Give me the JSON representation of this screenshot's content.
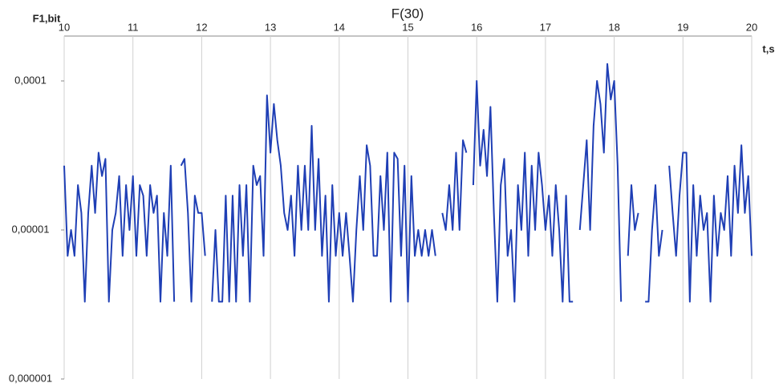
{
  "chart_data": {
    "type": "line",
    "title": "F(30)",
    "y_label": "F1,bit",
    "x_label": "t,s",
    "log_y": true,
    "x_axis_position": "top",
    "grid": "x",
    "xlim": [
      10,
      20
    ],
    "xticks": [
      10,
      11,
      12,
      13,
      14,
      15,
      16,
      17,
      18,
      19,
      20
    ],
    "ylim": [
      1e-06,
      0.0002
    ],
    "yticks": [
      {
        "value": 1e-06,
        "label": "0,000001"
      },
      {
        "value": 1e-05,
        "label": "0,00001"
      },
      {
        "value": 0.0001,
        "label": "0,0001"
      }
    ],
    "x": [
      10,
      10.05,
      10.1,
      10.15,
      10.2,
      10.25,
      10.3,
      10.35,
      10.4,
      10.45,
      10.5,
      10.55,
      10.6,
      10.65,
      10.7,
      10.75,
      10.8,
      10.85,
      10.9,
      10.95,
      11,
      11.05,
      11.1,
      11.15,
      11.2,
      11.25,
      11.3,
      11.35,
      11.4,
      11.45,
      11.5,
      11.55,
      11.6,
      11.65,
      11.7,
      11.75,
      11.8,
      11.85,
      11.9,
      11.95,
      12,
      12.05,
      12.1,
      12.15,
      12.2,
      12.25,
      12.3,
      12.35,
      12.4,
      12.45,
      12.5,
      12.55,
      12.6,
      12.65,
      12.7,
      12.75,
      12.8,
      12.85,
      12.9,
      12.95,
      13,
      13.05,
      13.1,
      13.15,
      13.2,
      13.25,
      13.3,
      13.35,
      13.4,
      13.45,
      13.5,
      13.55,
      13.6,
      13.65,
      13.7,
      13.75,
      13.8,
      13.85,
      13.9,
      13.95,
      14,
      14.05,
      14.1,
      14.15,
      14.2,
      14.25,
      14.3,
      14.35,
      14.4,
      14.45,
      14.5,
      14.55,
      14.6,
      14.65,
      14.7,
      14.75,
      14.8,
      14.85,
      14.9,
      14.95,
      15,
      15.05,
      15.1,
      15.15,
      15.2,
      15.25,
      15.3,
      15.35,
      15.4,
      15.45,
      15.5,
      15.55,
      15.6,
      15.65,
      15.7,
      15.75,
      15.8,
      15.85,
      15.9,
      15.95,
      16,
      16.05,
      16.1,
      16.15,
      16.2,
      16.25,
      16.3,
      16.35,
      16.4,
      16.45,
      16.5,
      16.55,
      16.6,
      16.65,
      16.7,
      16.75,
      16.8,
      16.85,
      16.9,
      16.95,
      17,
      17.05,
      17.1,
      17.15,
      17.2,
      17.25,
      17.3,
      17.35,
      17.4,
      17.45,
      17.5,
      17.55,
      17.6,
      17.65,
      17.7,
      17.75,
      17.8,
      17.85,
      17.9,
      17.95,
      18,
      18.05,
      18.1,
      18.15,
      18.2,
      18.25,
      18.3,
      18.35,
      18.4,
      18.45,
      18.5,
      18.55,
      18.6,
      18.65,
      18.7,
      18.75,
      18.8,
      18.85,
      18.9,
      18.95,
      19,
      19.05,
      19.1,
      19.15,
      19.2,
      19.25,
      19.3,
      19.35,
      19.4,
      19.45,
      19.5,
      19.55,
      19.6,
      19.65,
      19.7,
      19.75,
      19.8,
      19.85,
      19.9,
      19.95,
      20
    ],
    "series": [
      {
        "name": "F(30)",
        "color": "#1f3fb5",
        "values": [
          2.7e-05,
          6.7e-06,
          1e-05,
          6.7e-06,
          2e-05,
          1.3e-05,
          3.3e-06,
          1.3e-05,
          2.7e-05,
          1.3e-05,
          3.3e-05,
          2.3e-05,
          3e-05,
          3.3e-06,
          1e-05,
          1.3e-05,
          2.3e-05,
          6.7e-06,
          2e-05,
          1e-05,
          2.3e-05,
          6.7e-06,
          2e-05,
          1.7e-05,
          6.7e-06,
          2e-05,
          1.3e-05,
          1.7e-05,
          3.3e-06,
          1.3e-05,
          6.7e-06,
          2.7e-05,
          3.3e-06,
          null,
          2.7e-05,
          3e-05,
          1.3e-05,
          3.3e-06,
          1.7e-05,
          1.3e-05,
          1.3e-05,
          6.7e-06,
          null,
          3.3e-06,
          1e-05,
          3.3e-06,
          3.3e-06,
          1.7e-05,
          3.3e-06,
          1.7e-05,
          3.3e-06,
          2e-05,
          6.7e-06,
          2e-05,
          3.3e-06,
          2.7e-05,
          2e-05,
          2.3e-05,
          6.7e-06,
          8e-05,
          3.3e-05,
          7e-05,
          4e-05,
          2.7e-05,
          1.3e-05,
          1e-05,
          1.7e-05,
          6.7e-06,
          2.7e-05,
          1e-05,
          2.7e-05,
          1e-05,
          5e-05,
          1e-05,
          3e-05,
          6.7e-06,
          1.7e-05,
          3.3e-06,
          2e-05,
          6.7e-06,
          1.3e-05,
          6.7e-06,
          1.3e-05,
          6.7e-06,
          3.3e-06,
          1e-05,
          2.3e-05,
          1e-05,
          3.7e-05,
          2.7e-05,
          6.7e-06,
          6.7e-06,
          2.3e-05,
          1e-05,
          3.3e-05,
          3.3e-06,
          3.3e-05,
          3e-05,
          6.7e-06,
          2.7e-05,
          3.3e-06,
          2.3e-05,
          6.7e-06,
          1e-05,
          6.7e-06,
          1e-05,
          6.7e-06,
          1e-05,
          6.7e-06,
          null,
          1.3e-05,
          1e-05,
          2e-05,
          1e-05,
          3.3e-05,
          1e-05,
          4e-05,
          3.3e-05,
          null,
          2e-05,
          0.0001,
          2.7e-05,
          4.7e-05,
          2.3e-05,
          6.7e-05,
          1.3e-05,
          3.3e-06,
          2e-05,
          3e-05,
          6.7e-06,
          1e-05,
          3.3e-06,
          2e-05,
          1e-05,
          3.3e-05,
          6.7e-06,
          2.7e-05,
          1e-05,
          3.3e-05,
          2e-05,
          1e-05,
          1.7e-05,
          6.7e-06,
          2e-05,
          1e-05,
          3.3e-06,
          1.7e-05,
          3.3e-06,
          3.3e-06,
          null,
          1e-05,
          2e-05,
          4e-05,
          1e-05,
          5e-05,
          0.0001,
          7e-05,
          3.3e-05,
          0.00013,
          7.5e-05,
          0.0001,
          2.7e-05,
          3.3e-06,
          null,
          6.7e-06,
          2e-05,
          1e-05,
          1.3e-05,
          null,
          3.3e-06,
          3.3e-06,
          1e-05,
          2e-05,
          6.7e-06,
          1e-05,
          null,
          2.7e-05,
          1.3e-05,
          6.7e-06,
          1.7e-05,
          3.3e-05,
          3.3e-05,
          3.3e-06,
          2e-05,
          6.7e-06,
          1.7e-05,
          1e-05,
          1.3e-05,
          3.3e-06,
          1.7e-05,
          6.7e-06,
          1.3e-05,
          1e-05,
          2.3e-05,
          6.7e-06,
          2.7e-05,
          1.3e-05,
          3.7e-05,
          1.3e-05,
          2.3e-05,
          6.7e-06
        ]
      }
    ]
  }
}
